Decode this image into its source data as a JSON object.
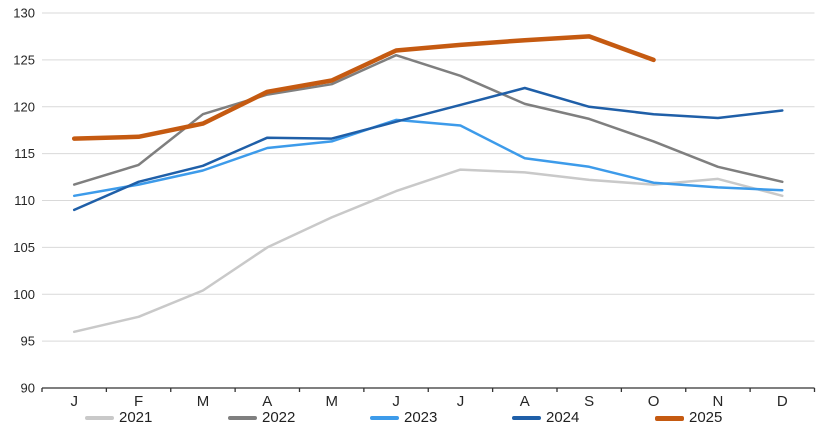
{
  "chart_data": {
    "type": "line",
    "title": "",
    "x_categories": [
      "J",
      "F",
      "M",
      "A",
      "M",
      "J",
      "J",
      "A",
      "S",
      "O",
      "N",
      "D"
    ],
    "y_ticks": [
      90,
      95,
      100,
      105,
      110,
      115,
      120,
      125,
      130
    ],
    "ylim": [
      90,
      130
    ],
    "grid": "horizontal",
    "grid_color": "#d9d9d9",
    "axis_color": "#333333",
    "legend_position": "bottom",
    "series": [
      {
        "name": "2021",
        "color": "#c9c9c9",
        "thickness": 2.5,
        "values": [
          96.0,
          97.6,
          100.4,
          105.0,
          108.2,
          111.0,
          113.3,
          113.0,
          112.2,
          111.7,
          112.3,
          110.5
        ]
      },
      {
        "name": "2022",
        "color": "#7f7f7f",
        "thickness": 2.5,
        "values": [
          111.7,
          113.8,
          119.2,
          121.3,
          122.4,
          125.5,
          123.3,
          120.3,
          118.7,
          116.3,
          113.6,
          112.0
        ]
      },
      {
        "name": "2023",
        "color": "#3d9bea",
        "thickness": 2.5,
        "values": [
          110.5,
          111.7,
          113.2,
          115.6,
          116.3,
          118.6,
          118.0,
          114.5,
          113.6,
          111.9,
          111.4,
          111.1
        ]
      },
      {
        "name": "2024",
        "color": "#1f5fa8",
        "thickness": 2.5,
        "values": [
          109.0,
          112.0,
          113.7,
          116.7,
          116.6,
          118.4,
          120.2,
          122.0,
          120.0,
          119.2,
          118.8,
          119.6
        ]
      },
      {
        "name": "2025",
        "color": "#c55a11",
        "thickness": 4.5,
        "values": [
          116.6,
          116.8,
          118.2,
          121.6,
          122.8,
          126.0,
          126.6,
          127.1,
          127.5,
          125.0
        ]
      }
    ]
  }
}
